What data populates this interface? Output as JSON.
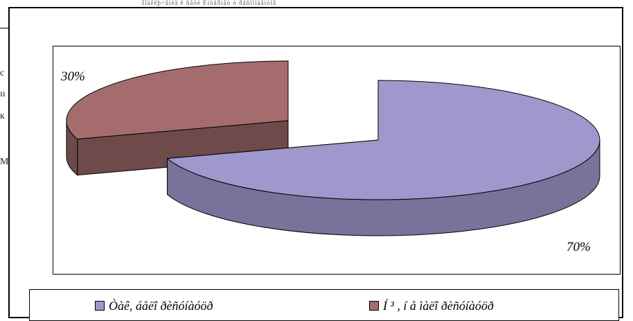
{
  "page": {
    "top_garble": "Ïîäêëþ÷åíèå ê ñåòè Èíòåðíåò ó ðåñïîíäåíòîâ",
    "left_fragments": [
      "c",
      "ıı",
      "к",
      "М"
    ]
  },
  "chart_data": {
    "type": "pie",
    "title": "",
    "three_d": true,
    "legend_position": "bottom",
    "slices": [
      {
        "label": "Òàê, áåëî ðèñóíàóöð",
        "value": 70,
        "pct_label": "70%",
        "color": "#9f98cc",
        "side_color": "#77739a"
      },
      {
        "label": "Í ³ , í å ìàëî ðèñóíàóöð",
        "value": 30,
        "pct_label": "30%",
        "color": "#a56c6e",
        "side_color": "#6e4a4b"
      }
    ]
  }
}
